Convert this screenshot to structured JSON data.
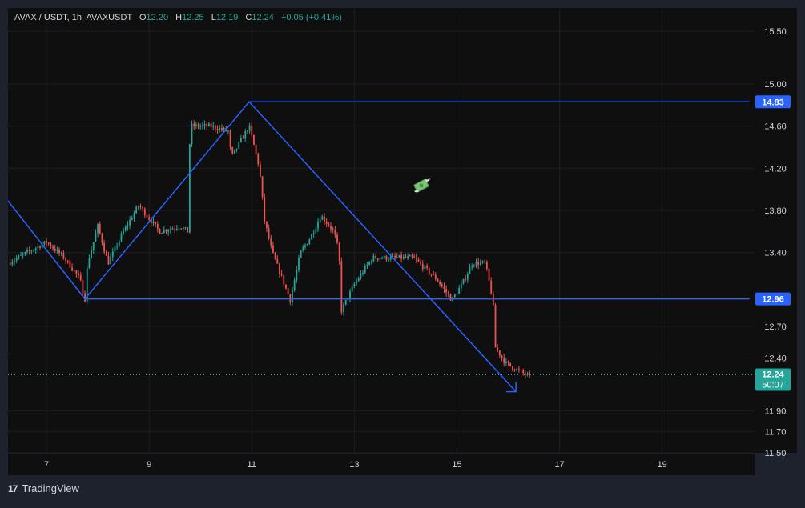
{
  "legend": {
    "symbol": "AVAX / USDT, 1h, AVAXUSDT",
    "o_label": "O",
    "o_value": "12.20",
    "h_label": "H",
    "h_value": "12.25",
    "l_label": "L",
    "l_value": "12.19",
    "c_label": "C",
    "c_value": "12.24",
    "change": "+0.05 (+0.41%)"
  },
  "branding": {
    "text": "TradingView",
    "logo_text": "17"
  },
  "colors": {
    "up": "#26a69a",
    "down": "#ef5350",
    "drawing": "#2962ff",
    "background": "#0f0f0f",
    "text": "#d1d4dc"
  },
  "icons": {
    "floating_emoji": "money-with-wings-icon"
  },
  "chart_data": {
    "type": "candlestick",
    "symbol": "AVAXUSDT",
    "interval": "1h",
    "xlim": [
      6.25,
      20.8
    ],
    "ylim": [
      11.5,
      15.72
    ],
    "x_ticks": [
      7,
      9,
      11,
      13,
      15,
      17,
      19
    ],
    "y_ticks": [
      15.5,
      15.0,
      14.6,
      14.2,
      13.8,
      13.4,
      12.7,
      12.4,
      11.9,
      11.7,
      11.5
    ],
    "x_unit": "day of month",
    "current_price": {
      "value": 12.24,
      "label": "12.24",
      "countdown": "50:07"
    },
    "price_labels": [
      {
        "value": 14.83,
        "label": "14.83"
      },
      {
        "value": 12.96,
        "label": "12.96"
      }
    ],
    "anchors": [
      [
        6.25,
        13.3
      ],
      [
        7.0,
        13.5
      ],
      [
        7.35,
        13.35
      ],
      [
        7.65,
        13.15
      ],
      [
        7.75,
        12.96
      ],
      [
        7.8,
        13.3
      ],
      [
        8.0,
        13.65
      ],
      [
        8.2,
        13.3
      ],
      [
        8.5,
        13.6
      ],
      [
        8.8,
        13.85
      ],
      [
        9.2,
        13.6
      ],
      [
        9.6,
        13.65
      ],
      [
        9.75,
        13.6
      ],
      [
        9.8,
        14.6
      ],
      [
        10.2,
        14.6
      ],
      [
        10.55,
        14.55
      ],
      [
        10.6,
        14.3
      ],
      [
        10.95,
        14.6
      ],
      [
        11.15,
        14.2
      ],
      [
        11.25,
        13.7
      ],
      [
        11.4,
        13.4
      ],
      [
        11.75,
        12.95
      ],
      [
        11.95,
        13.4
      ],
      [
        12.15,
        13.55
      ],
      [
        12.35,
        13.75
      ],
      [
        12.6,
        13.6
      ],
      [
        12.7,
        13.4
      ],
      [
        12.75,
        12.85
      ],
      [
        13.0,
        13.1
      ],
      [
        13.35,
        13.35
      ],
      [
        13.6,
        13.35
      ],
      [
        14.15,
        13.35
      ],
      [
        14.6,
        13.15
      ],
      [
        14.9,
        12.95
      ],
      [
        15.1,
        13.1
      ],
      [
        15.3,
        13.3
      ],
      [
        15.55,
        13.3
      ],
      [
        15.7,
        12.95
      ],
      [
        15.75,
        12.5
      ],
      [
        15.95,
        12.35
      ],
      [
        16.3,
        12.25
      ],
      [
        16.45,
        12.22
      ]
    ],
    "drawings": [
      {
        "name": "pattern-upper-line",
        "points": [
          [
            10.95,
            14.83
          ],
          [
            20.7,
            14.83
          ]
        ]
      },
      {
        "name": "pattern-lower-line",
        "points": [
          [
            7.75,
            12.96
          ],
          [
            20.7,
            12.96
          ]
        ]
      },
      {
        "name": "pattern-zigzag",
        "points": [
          [
            6.25,
            13.89
          ],
          [
            7.75,
            12.96
          ],
          [
            10.95,
            14.83
          ],
          [
            16.15,
            12.08
          ]
        ]
      }
    ]
  }
}
